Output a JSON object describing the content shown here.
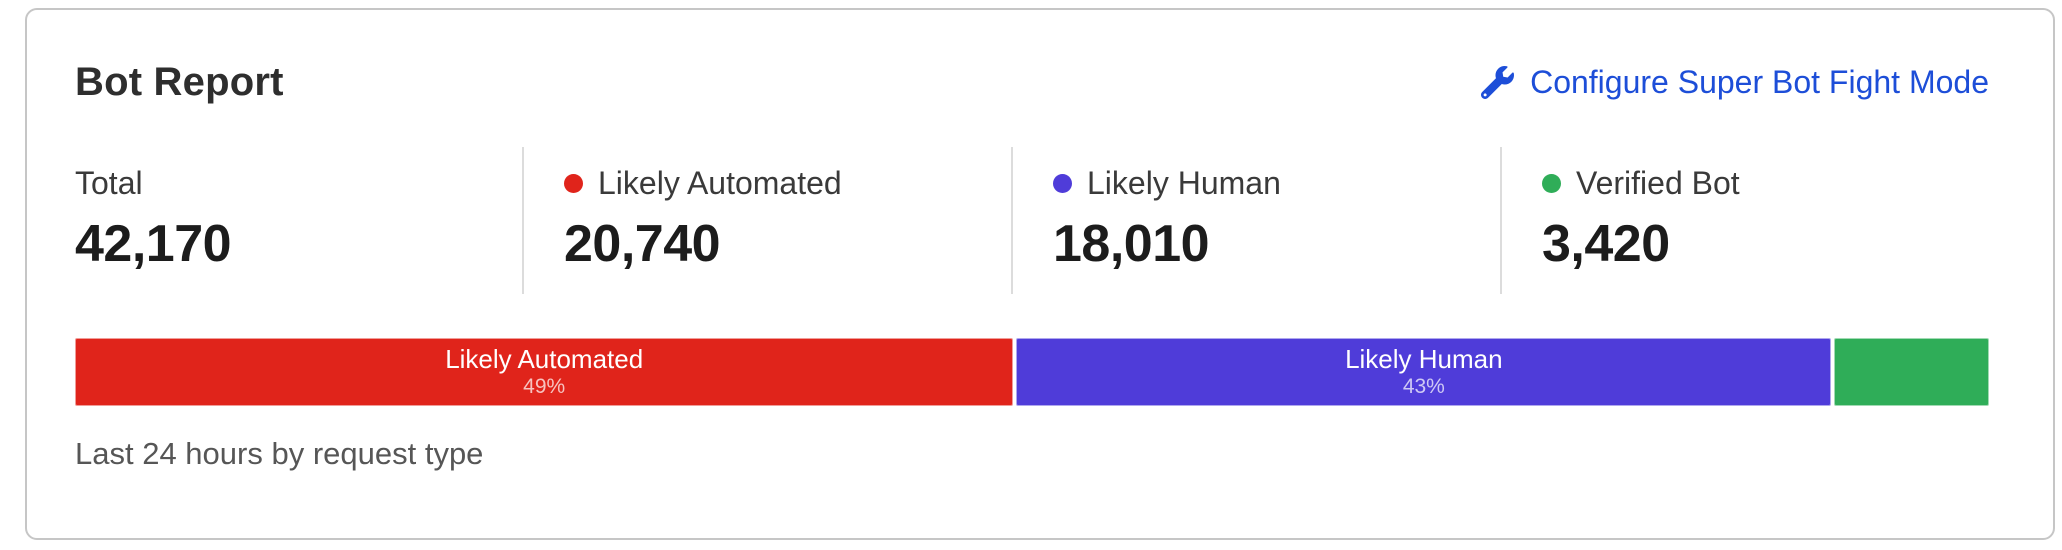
{
  "card": {
    "title": "Bot Report",
    "configure_link": "Configure Super Bot Fight Mode",
    "link_color": "#1d4ed8",
    "caption": "Last 24 hours by request type"
  },
  "stats": [
    {
      "id": "total",
      "label": "Total",
      "value": "42,170",
      "dot_color": null
    },
    {
      "id": "likely-automated",
      "label": "Likely Automated",
      "value": "20,740",
      "dot_color": "#e0241b"
    },
    {
      "id": "likely-human",
      "label": "Likely Human",
      "value": "18,010",
      "dot_color": "#4f3cd9"
    },
    {
      "id": "verified-bot",
      "label": "Verified Bot",
      "value": "3,420",
      "dot_color": "#2fad58"
    }
  ],
  "chart_data": {
    "type": "bar",
    "stacked": true,
    "title": "Bot Report",
    "note": "Last 24 hours by request type",
    "total": 42170,
    "segments": [
      {
        "name": "Likely Automated",
        "value": 20740,
        "percent_label": "49%",
        "color": "#e0241b",
        "show_label": true
      },
      {
        "name": "Likely Human",
        "value": 18010,
        "percent_label": "43%",
        "color": "#4f3cd9",
        "show_label": true
      },
      {
        "name": "Verified Bot",
        "value": 3420,
        "percent_label": "8%",
        "color": "#2fad58",
        "show_label": false
      }
    ]
  }
}
